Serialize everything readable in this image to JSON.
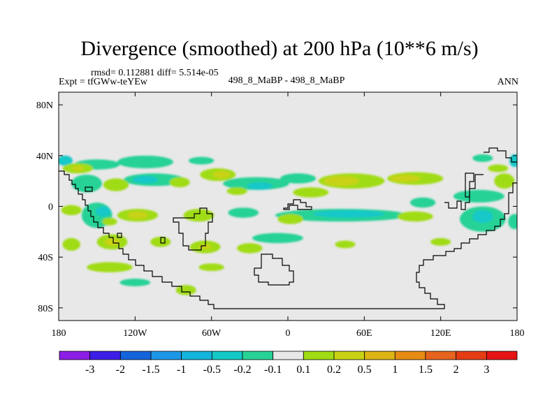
{
  "chart_data": {
    "type": "heatmap",
    "title": "Divergence (smoothed) at 200 hPa (10**6 m/s)",
    "stats": "rmsd= 0.112881 diff= 5.514e-05",
    "experiment": "Expt = tfGWw-teYEw",
    "center_label": "498_8_MaBP - 498_8_MaBP",
    "right_label": "ANN",
    "x_range": [
      -180,
      180
    ],
    "y_range": [
      -90,
      90
    ],
    "x_ticks": [
      {
        "value": -180,
        "label": "180"
      },
      {
        "value": -120,
        "label": "120W"
      },
      {
        "value": -60,
        "label": "60W"
      },
      {
        "value": 0,
        "label": "0"
      },
      {
        "value": 60,
        "label": "60E"
      },
      {
        "value": 120,
        "label": "120E"
      },
      {
        "value": 180,
        "label": "180"
      }
    ],
    "y_ticks": [
      {
        "value": 80,
        "label": "80N"
      },
      {
        "value": 40,
        "label": "40N"
      },
      {
        "value": 0,
        "label": "0"
      },
      {
        "value": -40,
        "label": "40S"
      },
      {
        "value": -80,
        "label": "80S"
      }
    ],
    "colorbar": {
      "levels": [
        -3,
        -2,
        -1.5,
        -1,
        -0.5,
        -0.2,
        -0.1,
        0.1,
        0.2,
        0.5,
        1,
        1.5,
        2,
        3
      ],
      "labels": [
        "-3",
        "-2",
        "-1.5",
        "-1",
        "-0.5",
        "-0.2",
        "-0.1",
        "0.1",
        "0.2",
        "0.5",
        "1",
        "1.5",
        "2",
        "3"
      ],
      "colors": [
        "#8c1ee6",
        "#3c1ee6",
        "#1464dc",
        "#1e96e6",
        "#14b4dc",
        "#14c8c8",
        "#28d296",
        "#e8e8e8",
        "#a0dc14",
        "#c8d214",
        "#dcb414",
        "#e68c14",
        "#e6641e",
        "#e63c14",
        "#e61414"
      ]
    },
    "features": [
      {
        "lon": -175,
        "lat": 36,
        "rx": 6,
        "ry": 4,
        "cls": 5
      },
      {
        "lon": -150,
        "lat": 33,
        "rx": 18,
        "ry": 4,
        "cls": 6
      },
      {
        "lon": -112,
        "lat": 35,
        "rx": 22,
        "ry": 5,
        "cls": 6
      },
      {
        "lon": -68,
        "lat": 36,
        "rx": 10,
        "ry": 3,
        "cls": 6
      },
      {
        "lon": 178,
        "lat": 36,
        "rx": 4,
        "ry": 5,
        "cls": 5
      },
      {
        "lon": 153,
        "lat": 38,
        "rx": 8,
        "ry": 3,
        "cls": 6
      },
      {
        "lon": -158,
        "lat": 18,
        "rx": 12,
        "ry": 7,
        "cls": 6
      },
      {
        "lon": -105,
        "lat": 21,
        "rx": 24,
        "ry": 5,
        "cls": 6
      },
      {
        "lon": -112,
        "lat": 21,
        "rx": 10,
        "ry": 3,
        "cls": 5
      },
      {
        "lon": -25,
        "lat": 18,
        "rx": 26,
        "ry": 5,
        "cls": 6
      },
      {
        "lon": -22,
        "lat": 16,
        "rx": 10,
        "ry": 3,
        "cls": 5
      },
      {
        "lon": 8,
        "lat": 22,
        "rx": 14,
        "ry": 4,
        "cls": 6
      },
      {
        "lon": 150,
        "lat": 8,
        "rx": 20,
        "ry": 5,
        "cls": 6
      },
      {
        "lon": -150,
        "lat": -7,
        "rx": 12,
        "ry": 10,
        "cls": 6
      },
      {
        "lon": -145,
        "lat": -4,
        "rx": 6,
        "ry": 4,
        "cls": 5
      },
      {
        "lon": -35,
        "lat": -5,
        "rx": 12,
        "ry": 4,
        "cls": 6
      },
      {
        "lon": 42,
        "lat": -7,
        "rx": 52,
        "ry": 5,
        "cls": 6
      },
      {
        "lon": 48,
        "lat": -6,
        "rx": 28,
        "ry": 3,
        "cls": 5
      },
      {
        "lon": 106,
        "lat": 3,
        "rx": 10,
        "ry": 4,
        "cls": 6
      },
      {
        "lon": 153,
        "lat": -10,
        "rx": 18,
        "ry": 10,
        "cls": 6
      },
      {
        "lon": 153,
        "lat": -8,
        "rx": 8,
        "ry": 5,
        "cls": 5
      },
      {
        "lon": 178,
        "lat": -12,
        "rx": 5,
        "ry": 6,
        "cls": 6
      },
      {
        "lon": -8,
        "lat": -25,
        "rx": 20,
        "ry": 4,
        "cls": 6
      },
      {
        "lon": -120,
        "lat": -60,
        "rx": 12,
        "ry": 3,
        "cls": 6
      },
      {
        "lon": -165,
        "lat": 30,
        "rx": 12,
        "ry": 4,
        "cls": 8
      },
      {
        "lon": -135,
        "lat": 17,
        "rx": 10,
        "ry": 5,
        "cls": 8
      },
      {
        "lon": -85,
        "lat": 19,
        "rx": 8,
        "ry": 4,
        "cls": 8
      },
      {
        "lon": -55,
        "lat": 25,
        "rx": 14,
        "ry": 5,
        "cls": 8
      },
      {
        "lon": -40,
        "lat": 12,
        "rx": 8,
        "ry": 3,
        "cls": 8
      },
      {
        "lon": 18,
        "lat": 11,
        "rx": 14,
        "ry": 4,
        "cls": 8
      },
      {
        "lon": 50,
        "lat": 20,
        "rx": 26,
        "ry": 6,
        "cls": 8
      },
      {
        "lon": 100,
        "lat": 22,
        "rx": 22,
        "ry": 5,
        "cls": 8
      },
      {
        "lon": 170,
        "lat": 20,
        "rx": 8,
        "ry": 6,
        "cls": 8
      },
      {
        "lon": -170,
        "lat": -3,
        "rx": 8,
        "ry": 4,
        "cls": 8
      },
      {
        "lon": -118,
        "lat": -7,
        "rx": 16,
        "ry": 5,
        "cls": 8
      },
      {
        "lon": -70,
        "lat": -7,
        "rx": 12,
        "ry": 5,
        "cls": 8
      },
      {
        "lon": 2,
        "lat": -10,
        "rx": 10,
        "ry": 4,
        "cls": 8
      },
      {
        "lon": 100,
        "lat": -8,
        "rx": 14,
        "ry": 4,
        "cls": 8
      },
      {
        "lon": -170,
        "lat": -30,
        "rx": 7,
        "ry": 5,
        "cls": 8
      },
      {
        "lon": -138,
        "lat": -28,
        "rx": 12,
        "ry": 6,
        "cls": 8
      },
      {
        "lon": -100,
        "lat": -28,
        "rx": 8,
        "ry": 4,
        "cls": 8
      },
      {
        "lon": -65,
        "lat": -32,
        "rx": 12,
        "ry": 5,
        "cls": 8
      },
      {
        "lon": -30,
        "lat": -33,
        "rx": 10,
        "ry": 4,
        "cls": 8
      },
      {
        "lon": -140,
        "lat": -48,
        "rx": 18,
        "ry": 4,
        "cls": 8
      },
      {
        "lon": -60,
        "lat": -48,
        "rx": 10,
        "ry": 3,
        "cls": 8
      },
      {
        "lon": -80,
        "lat": -66,
        "rx": 8,
        "ry": 4,
        "cls": 8
      },
      {
        "lon": -140,
        "lat": -12,
        "rx": 6,
        "ry": 3,
        "cls": 8
      },
      {
        "lon": 165,
        "lat": 30,
        "rx": 8,
        "ry": 3,
        "cls": 8
      },
      {
        "lon": 120,
        "lat": -28,
        "rx": 8,
        "ry": 3,
        "cls": 8
      },
      {
        "lon": 45,
        "lat": -30,
        "rx": 8,
        "ry": 3,
        "cls": 8
      },
      {
        "lon": 42,
        "lat": 20,
        "rx": 14,
        "ry": 4,
        "cls": 9
      },
      {
        "lon": 92,
        "lat": 22,
        "rx": 12,
        "ry": 3,
        "cls": 9
      },
      {
        "lon": -52,
        "lat": 25,
        "rx": 7,
        "ry": 3,
        "cls": 9
      },
      {
        "lon": -118,
        "lat": -7,
        "rx": 8,
        "ry": 3,
        "cls": 9
      },
      {
        "lon": -138,
        "lat": -28,
        "rx": 6,
        "ry": 3,
        "cls": 9
      },
      {
        "lon": -165,
        "lat": 30,
        "rx": 5,
        "ry": 2,
        "cls": 9
      },
      {
        "lon": -65,
        "lat": -32,
        "rx": 5,
        "ry": 2,
        "cls": 9
      }
    ]
  }
}
